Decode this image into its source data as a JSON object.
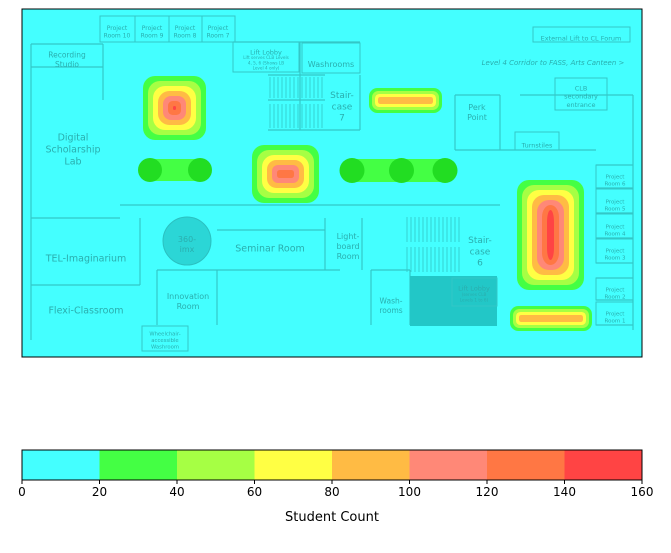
{
  "chart_data": {
    "type": "heatmap",
    "title": "",
    "colorbar": {
      "label": "Student Count",
      "min": 0,
      "max": 160,
      "ticks": [
        0,
        20,
        40,
        60,
        80,
        100,
        120,
        140,
        160
      ],
      "bins": [
        {
          "from": 0,
          "to": 20,
          "color": "#44ffff"
        },
        {
          "from": 20,
          "to": 40,
          "color": "#44ff44"
        },
        {
          "from": 40,
          "to": 60,
          "color": "#a6ff44"
        },
        {
          "from": 60,
          "to": 80,
          "color": "#ffff44"
        },
        {
          "from": 80,
          "to": 100,
          "color": "#ffbb44"
        },
        {
          "from": 100,
          "to": 120,
          "color": "#ff8877"
        },
        {
          "from": 120,
          "to": 140,
          "color": "#ff7744"
        },
        {
          "from": 140,
          "to": 160,
          "color": "#ff4444"
        }
      ]
    },
    "hotspots": [
      {
        "location": "Corridor beside Digital Scholarship Lab",
        "peak": 160
      },
      {
        "location": "Corridor near Seminar Room",
        "peak": 160
      },
      {
        "location": "Project Rooms corridor (east)",
        "peak": 160
      },
      {
        "location": "Corridor near Staircase 7",
        "peak": 95
      },
      {
        "location": "Corridor near Lift Lobby (south-east)",
        "peak": 95
      },
      {
        "location": "Corridor west of Seminar Room",
        "peak": 30
      },
      {
        "location": "Corridor east of Seminar Room",
        "peak": 30
      }
    ]
  },
  "floor_plan": {
    "rooms": [
      {
        "key": "pr10",
        "label": "Project Room 10"
      },
      {
        "key": "pr9",
        "label": "Project Room 9"
      },
      {
        "key": "pr8",
        "label": "Project Room 8"
      },
      {
        "key": "pr7",
        "label": "Project Room 7"
      },
      {
        "key": "recording",
        "label": "Recording Studio"
      },
      {
        "key": "lift_lobby_n",
        "label": "Lift Lobby"
      },
      {
        "key": "lift_lobby_n_note",
        "label": "Lift serves CLB Levels 4, 5, 6 (Shows LB Level 4 only)"
      },
      {
        "key": "washrooms_n",
        "label": "Washrooms"
      },
      {
        "key": "ext_lift",
        "label": "External Lift to CL Forum"
      },
      {
        "key": "corridor_note",
        "label": "Level 4 Corridor to FASS, Arts Canteen >"
      },
      {
        "key": "dsl",
        "label": "Digital Scholarship Lab"
      },
      {
        "key": "staircase7",
        "label": "Stair-case 7"
      },
      {
        "key": "perk",
        "label": "Perk Point"
      },
      {
        "key": "clb",
        "label": "CLB secondary entrance"
      },
      {
        "key": "turnstiles",
        "label": "Turnstiles"
      },
      {
        "key": "pr6",
        "label": "Project Room 6"
      },
      {
        "key": "pr5",
        "label": "Project Room 5"
      },
      {
        "key": "pr4",
        "label": "Project Room 4"
      },
      {
        "key": "pr3",
        "label": "Project Room 3"
      },
      {
        "key": "pr2",
        "label": "Project Room 2"
      },
      {
        "key": "pr1",
        "label": "Project Room 1"
      },
      {
        "key": "tel",
        "label": "TEL-Imaginarium"
      },
      {
        "key": "imx",
        "label": "360-imx"
      },
      {
        "key": "seminar",
        "label": "Seminar Room"
      },
      {
        "key": "lightboard",
        "label": "Light-board Room"
      },
      {
        "key": "staircase6",
        "label": "Stair-case 6"
      },
      {
        "key": "flexi",
        "label": "Flexi-Classroom"
      },
      {
        "key": "innovation",
        "label": "Innovation Room"
      },
      {
        "key": "washrooms_s",
        "label": "Wash-rooms"
      },
      {
        "key": "lift_lobby_s",
        "label": "Lift Lobby"
      },
      {
        "key": "lift_lobby_s_note",
        "label": "(serves CLB Levels 1 to 6)"
      },
      {
        "key": "wheelchair",
        "label": "Wheelchair-accessible Washroom"
      }
    ]
  }
}
